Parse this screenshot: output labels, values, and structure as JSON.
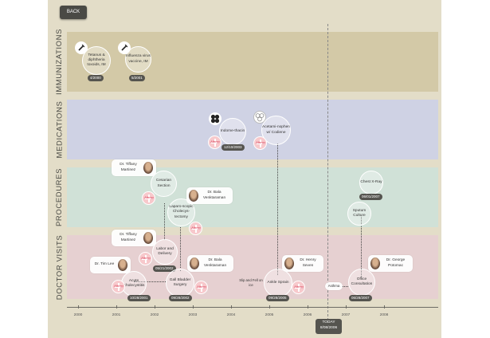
{
  "nav": {
    "back_label": "BACK"
  },
  "bands": {
    "immunizations": "IMMUNIZATIONS",
    "medications": "MEDICATIONS",
    "procedures": "PROCEDURES",
    "doctor_visits": "DOCTOR VISITS"
  },
  "colors": {
    "background": "#e3ddc8",
    "immunizations": "#d3c9a7",
    "medications": "#cfd2e4",
    "procedures": "#d0e1d7",
    "doctor_visits": "#e6d0d1",
    "date_badge": "#55544f",
    "allergy": "#f7c9cc"
  },
  "immunizations": [
    {
      "label": "Tetanus & diphtheria toxoids, IM",
      "date": "4/2000",
      "icon": "syringe-icon"
    },
    {
      "label": "Influenza virus vaccine, IM",
      "date": "5/2001",
      "icon": "syringe-icon"
    }
  ],
  "medications": [
    {
      "label": "Indome-thacin",
      "date": "12/10/2003",
      "icon": "pills-icon",
      "allergy": "Allergy"
    },
    {
      "label": "Acetami-nophen w/ Codiene",
      "icon": "pills-outline-icon",
      "allergy": "Allergy"
    }
  ],
  "procedures": [
    {
      "label": "Cesarian Section",
      "date": "05/21/2002",
      "doctor": "Dr. Tiffany Martinez",
      "allergy": "Allergy"
    },
    {
      "label": "Laparo-scopic Cholecys-tectomy",
      "doctor": "Dr. Bala Venktaraman",
      "allergy": "Allergy"
    },
    {
      "label": "Chest X-Ray",
      "date": "06/01/2007"
    },
    {
      "label": "Sputum Culture"
    }
  ],
  "visits": [
    {
      "label": "Acute Cholecystitis",
      "date": "10/28/2001",
      "doctor": "Dr. Tim Lee",
      "allergy": "Allergy"
    },
    {
      "label": "Labor and Delivery",
      "doctor": "Dr. Tiffany Martinez",
      "allergy": "Allergy"
    },
    {
      "label": "Gall Bladder Surgery",
      "date": "09/28/2002",
      "doctor": "Dr. Bala Venktaraman",
      "allergy": "Allergy"
    },
    {
      "label": "Ankle Sprain",
      "date": "09/28/2005",
      "doctor": "Dr. Henry Seven",
      "allergy": "Allergy"
    },
    {
      "label": "Office Consultation",
      "date": "06/28/2007",
      "doctor": "Dr. George Potomac"
    }
  ],
  "notes": {
    "slip": "Slip and Fell on ice",
    "asthma": "Asthma",
    "allergy_shared": "Allergy"
  },
  "timeline": {
    "years": [
      "2000",
      "2001",
      "2002",
      "2003",
      "2004",
      "2005",
      "2006",
      "2007",
      "2008"
    ],
    "today_label": "TODAY",
    "today_date": "8/08/2006"
  }
}
